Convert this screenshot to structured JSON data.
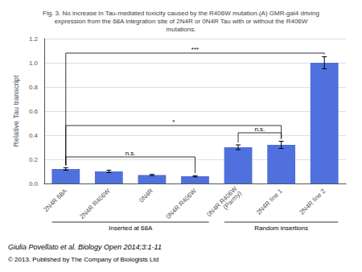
{
  "chart_data": {
    "type": "bar",
    "title": "Fig. 3. No increase in Tau-mediated toxicity caused by the R406W mutation.(A) GMR-gal4 driving\nexpression from the 68A integration site of 2N4R or 0N4R Tau with or without the R406W\nmutations.",
    "ylabel": "Relative Tau transcript",
    "categories": [
      "2N4R 68A",
      "2N4R R406W",
      "0N4R",
      "0N4R R406W",
      "0N4R R406W\n(Parmy)",
      "2N4R line 1",
      "2N4R line 2"
    ],
    "values": [
      0.12,
      0.1,
      0.07,
      0.06,
      0.3,
      0.32,
      1.0
    ],
    "errors": [
      0.01,
      0.01,
      0.005,
      0.005,
      0.02,
      0.03,
      0.05
    ],
    "ylim": [
      0.0,
      1.2
    ],
    "yticks": [
      {
        "value": 0.0,
        "label": "0.0"
      },
      0.2,
      0.4,
      0.6,
      0.8,
      {
        "value": 1.0,
        "label": "1.0"
      },
      1.2
    ],
    "annotations": [
      {
        "text": "n.s.",
        "from": "2N4R 68A",
        "to": "0N4R R406W",
        "y": 0.22
      },
      {
        "text": "*",
        "from": "2N4R 68A",
        "to": "2N4R line 1",
        "y": 0.48
      },
      {
        "text": "n.s.",
        "from": "0N4R R406W\n(Parmy)",
        "to": "2N4R line 1",
        "y": 0.42
      },
      {
        "text": "***",
        "from": "2N4R 68A",
        "to": "2N4R line 2",
        "y": 1.08
      }
    ],
    "group_labels": [
      {
        "text": "Inserted at 68A",
        "from": "2N4R 68A",
        "to": "0N4R R406W"
      },
      {
        "text": "Random insertions",
        "from": "0N4R R406W\n(Parmy)",
        "to": "2N4R line 2"
      }
    ],
    "footer": [
      "Giulia Povellato et al. Biology Open 2014;3:1-11",
      "© 2013. Published by The Company of Biologists Ltd"
    ]
  }
}
